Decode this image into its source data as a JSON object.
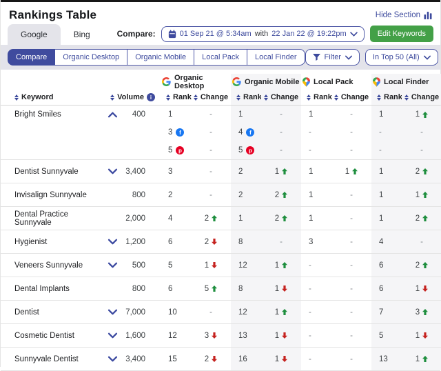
{
  "page": {
    "title": "Rankings Table",
    "hide_section": "Hide Section"
  },
  "engine_tabs": [
    {
      "label": "Google",
      "active": true
    },
    {
      "label": "Bing",
      "active": false
    }
  ],
  "compare": {
    "label": "Compare:",
    "date_from": "01 Sep 21 @ 5:34am",
    "with_label": "with",
    "date_to": "22 Jan 22 @ 19:22pm"
  },
  "edit_keywords": "Edit Keywords",
  "view_tabs": [
    {
      "label": "Compare",
      "active": true
    },
    {
      "label": "Organic Desktop",
      "active": false
    },
    {
      "label": "Organic Mobile",
      "active": false
    },
    {
      "label": "Local Pack",
      "active": false
    },
    {
      "label": "Local Finder",
      "active": false
    }
  ],
  "filter_button": "Filter",
  "top_filter": "In Top 50 (All)",
  "colors": {
    "primary_indigo": "#3f4b9e",
    "green_button": "#43a047",
    "up_arrow": "#1e8e3e",
    "down_arrow": "#c5221f",
    "facebook": "#1877f2",
    "pinterest": "#e60023"
  },
  "table": {
    "groups": [
      {
        "key": "od",
        "label": "Organic Desktop",
        "icon": "google",
        "shade": false
      },
      {
        "key": "om",
        "label": "Organic Mobile",
        "icon": "google",
        "shade": true
      },
      {
        "key": "lp",
        "label": "Local Pack",
        "icon": "map-pin",
        "shade": false
      },
      {
        "key": "lf",
        "label": "Local Finder",
        "icon": "map-pin",
        "shade": true
      }
    ],
    "columns": {
      "keyword": "Keyword",
      "volume": "Volume",
      "rank": "Rank",
      "change": "Change"
    },
    "rows": [
      {
        "keyword": "Bright Smiles",
        "expand": "up",
        "volume": "400",
        "lines": [
          {
            "od": {
              "rank": "1"
            },
            "om": {
              "rank": "1"
            },
            "lp": {
              "rank": "1"
            },
            "lf": {
              "rank": "1",
              "change": {
                "v": "1",
                "dir": "up"
              }
            }
          },
          {
            "od": {
              "rank": "3",
              "icon": "facebook"
            },
            "om": {
              "rank": "4",
              "icon": "facebook"
            },
            "lp": {
              "rank": "-"
            },
            "lf": {
              "rank": "-"
            }
          },
          {
            "od": {
              "rank": "5",
              "icon": "pinterest"
            },
            "om": {
              "rank": "5",
              "icon": "pinterest"
            },
            "lp": {
              "rank": "-"
            },
            "lf": {
              "rank": "-"
            }
          }
        ]
      },
      {
        "keyword": "Dentist Sunnyvale",
        "expand": "down",
        "volume": "3,400",
        "lines": [
          {
            "od": {
              "rank": "3"
            },
            "om": {
              "rank": "2",
              "change": {
                "v": "1",
                "dir": "up"
              }
            },
            "lp": {
              "rank": "1",
              "change": {
                "v": "1",
                "dir": "up"
              }
            },
            "lf": {
              "rank": "1",
              "change": {
                "v": "2",
                "dir": "up"
              }
            }
          }
        ]
      },
      {
        "keyword": "Invisalign Sunnyvale",
        "expand": null,
        "volume": "800",
        "lines": [
          {
            "od": {
              "rank": "2"
            },
            "om": {
              "rank": "2",
              "change": {
                "v": "2",
                "dir": "up"
              }
            },
            "lp": {
              "rank": "1"
            },
            "lf": {
              "rank": "1",
              "change": {
                "v": "1",
                "dir": "up"
              }
            }
          }
        ]
      },
      {
        "keyword": "Dental Practice Sunnyvale",
        "expand": null,
        "volume": "2,000",
        "lines": [
          {
            "od": {
              "rank": "4",
              "change": {
                "v": "2",
                "dir": "up"
              }
            },
            "om": {
              "rank": "1",
              "change": {
                "v": "2",
                "dir": "up"
              }
            },
            "lp": {
              "rank": "1"
            },
            "lf": {
              "rank": "1",
              "change": {
                "v": "2",
                "dir": "up"
              }
            }
          }
        ]
      },
      {
        "keyword": "Hygienist",
        "expand": "down",
        "volume": "1,200",
        "lines": [
          {
            "od": {
              "rank": "6",
              "change": {
                "v": "2",
                "dir": "down"
              }
            },
            "om": {
              "rank": "8"
            },
            "lp": {
              "rank": "3"
            },
            "lf": {
              "rank": "4"
            }
          }
        ]
      },
      {
        "keyword": "Veneers Sunnyvale",
        "expand": "down",
        "volume": "500",
        "lines": [
          {
            "od": {
              "rank": "5",
              "change": {
                "v": "1",
                "dir": "down"
              }
            },
            "om": {
              "rank": "12",
              "change": {
                "v": "1",
                "dir": "up"
              }
            },
            "lp": {
              "rank": "-"
            },
            "lf": {
              "rank": "6",
              "change": {
                "v": "2",
                "dir": "up"
              }
            }
          }
        ]
      },
      {
        "keyword": "Dental Implants",
        "expand": null,
        "volume": "800",
        "lines": [
          {
            "od": {
              "rank": "6",
              "change": {
                "v": "5",
                "dir": "up"
              }
            },
            "om": {
              "rank": "8",
              "change": {
                "v": "1",
                "dir": "down"
              }
            },
            "lp": {
              "rank": "-"
            },
            "lf": {
              "rank": "6",
              "change": {
                "v": "1",
                "dir": "down"
              }
            }
          }
        ]
      },
      {
        "keyword": "Dentist",
        "expand": "down",
        "volume": "7,000",
        "lines": [
          {
            "od": {
              "rank": "10"
            },
            "om": {
              "rank": "12",
              "change": {
                "v": "1",
                "dir": "up"
              }
            },
            "lp": {
              "rank": "-"
            },
            "lf": {
              "rank": "7",
              "change": {
                "v": "3",
                "dir": "up"
              }
            }
          }
        ]
      },
      {
        "keyword": "Cosmetic Dentist",
        "expand": "down",
        "volume": "1,600",
        "lines": [
          {
            "od": {
              "rank": "12",
              "change": {
                "v": "3",
                "dir": "down"
              }
            },
            "om": {
              "rank": "13",
              "change": {
                "v": "1",
                "dir": "down"
              }
            },
            "lp": {
              "rank": "-"
            },
            "lf": {
              "rank": "5",
              "change": {
                "v": "1",
                "dir": "down"
              }
            }
          }
        ]
      },
      {
        "keyword": "Sunnyvale Dentist",
        "expand": "down",
        "volume": "3,400",
        "lines": [
          {
            "od": {
              "rank": "15",
              "change": {
                "v": "2",
                "dir": "down"
              }
            },
            "om": {
              "rank": "16",
              "change": {
                "v": "1",
                "dir": "down"
              }
            },
            "lp": {
              "rank": "-"
            },
            "lf": {
              "rank": "13",
              "change": {
                "v": "1",
                "dir": "up"
              }
            }
          }
        ]
      }
    ]
  }
}
